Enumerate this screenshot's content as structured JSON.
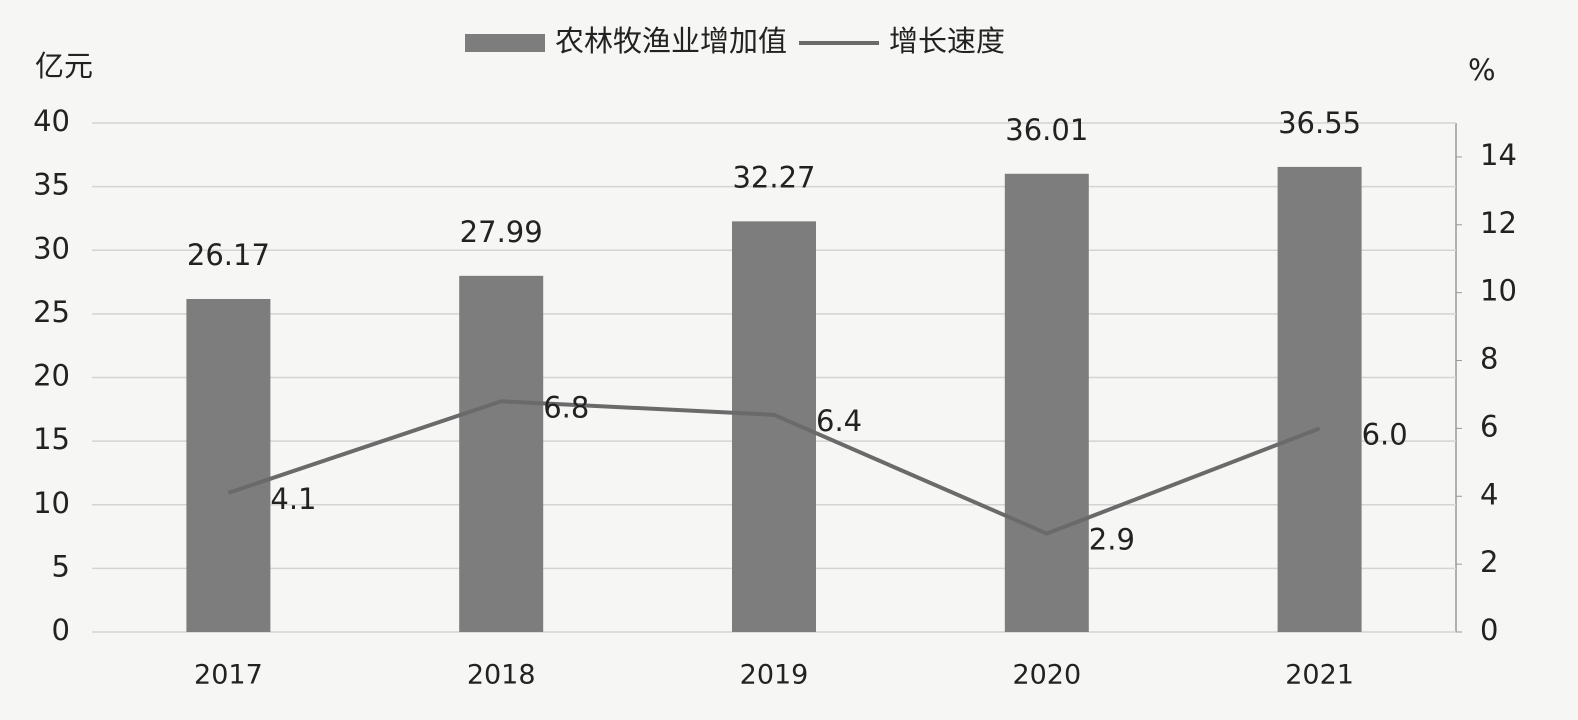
{
  "chart_data": {
    "type": "combo",
    "y_label": "亿元",
    "y2_label": "%",
    "categories": [
      "2017",
      "2018",
      "2019",
      "2020",
      "2021"
    ],
    "series": [
      {
        "name": "农林牧渔业增加值",
        "type": "bar",
        "color": "#7d7d7d",
        "values": [
          26.17,
          27.99,
          32.27,
          36.01,
          36.55
        ]
      },
      {
        "name": "增长速度",
        "type": "line",
        "axis": "y2",
        "color": "#6a6a6a",
        "values": [
          4.1,
          6.8,
          6.4,
          2.9,
          6.0
        ],
        "value_labels": [
          "4.1",
          "6.8",
          "6.4",
          "2.9",
          "6.0"
        ]
      }
    ],
    "ylim": [
      0,
      40
    ],
    "yticks": [
      0,
      5,
      10,
      15,
      20,
      25,
      30,
      35,
      40
    ],
    "y2lim": [
      0,
      15
    ],
    "y2ticks": [
      0,
      2,
      4,
      6,
      8,
      10,
      12,
      14
    ],
    "grid": true,
    "legend": "top"
  }
}
